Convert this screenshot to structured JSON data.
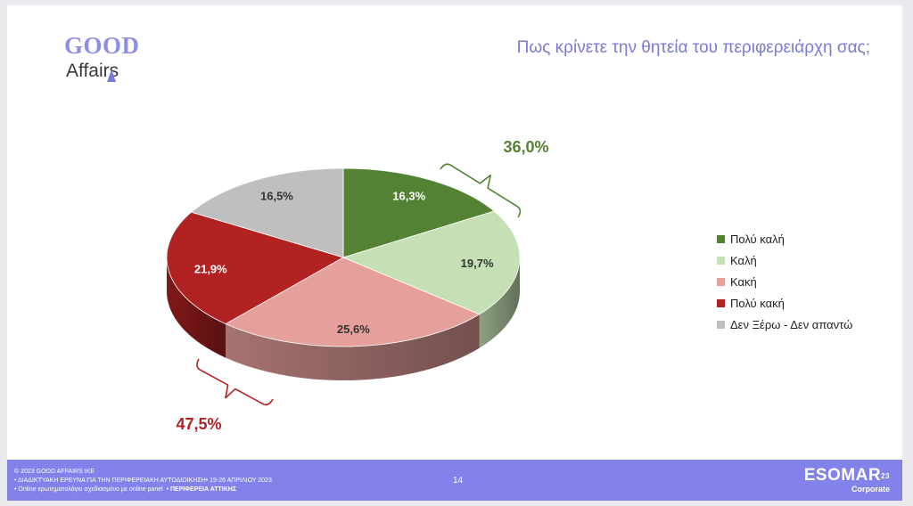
{
  "brand": {
    "logo_line1": "GOOD",
    "logo_line2": "Affairs"
  },
  "title": "Πως κρίνετε την θητεία του περιφερειάρχη σας;",
  "chart_data": {
    "type": "pie",
    "title": "Πως κρίνετε την θητεία του περιφερειάρχη σας;",
    "slices": [
      {
        "label": "Πολύ καλή",
        "value": 16.3,
        "value_label": "16,3%",
        "color": "#548235"
      },
      {
        "label": "Καλή",
        "value": 19.7,
        "value_label": "19,7%",
        "color": "#c5e0b4"
      },
      {
        "label": "Κακή",
        "value": 25.6,
        "value_label": "25,6%",
        "color": "#e6a09b"
      },
      {
        "label": "Πολύ κακή",
        "value": 21.9,
        "value_label": "21,9%",
        "color": "#b22222"
      },
      {
        "label": "Δεν Ξέρω - Δεν απαντώ",
        "value": 16.5,
        "value_label": "16,5%",
        "color": "#bfbfbf"
      }
    ],
    "annotations": [
      {
        "label": "36,0%",
        "value": 36.0,
        "slices": [
          "Πολύ καλή",
          "Καλή"
        ],
        "color": "#548235"
      },
      {
        "label": "47,5%",
        "value": 47.5,
        "slices": [
          "Κακή",
          "Πολύ κακή"
        ],
        "color": "#b22222"
      }
    ],
    "legend_position": "right"
  },
  "legend": [
    {
      "label": "Πολύ καλή",
      "color": "#548235"
    },
    {
      "label": "Καλή",
      "color": "#c5e0b4"
    },
    {
      "label": "Κακή",
      "color": "#e6a09b"
    },
    {
      "label": "Πολύ κακή",
      "color": "#b22222"
    },
    {
      "label": "Δεν Ξέρω - Δεν απαντώ",
      "color": "#bfbfbf"
    }
  ],
  "footer": {
    "line1": "© 2023 GOOD AFFAIRS IKE",
    "line2": "• ΔΙΑΔΙΚΤΥΑΚΗ ΕΡΕΥΝΑ  ΓΙΑ ΤΗΝ ΠΕΡΙΦΕΡΕΙΑΚΗ ΑΥΤΟΔΙΟΙΚΗΣΗ• 19-26 ΑΠΡΙΛΙΟΥ 2023",
    "line3": "• Online ερωτηματολόγιο σχεδιασμένο με online panel",
    "line3_bold": "• ΠΕΡΙΦΕΡΕΙΑ ΑΤΤΙΚΗΣ",
    "page_number": "14",
    "esomar_name": "ESOMAR",
    "esomar_sup": "23",
    "esomar_sub": "Corporate"
  }
}
